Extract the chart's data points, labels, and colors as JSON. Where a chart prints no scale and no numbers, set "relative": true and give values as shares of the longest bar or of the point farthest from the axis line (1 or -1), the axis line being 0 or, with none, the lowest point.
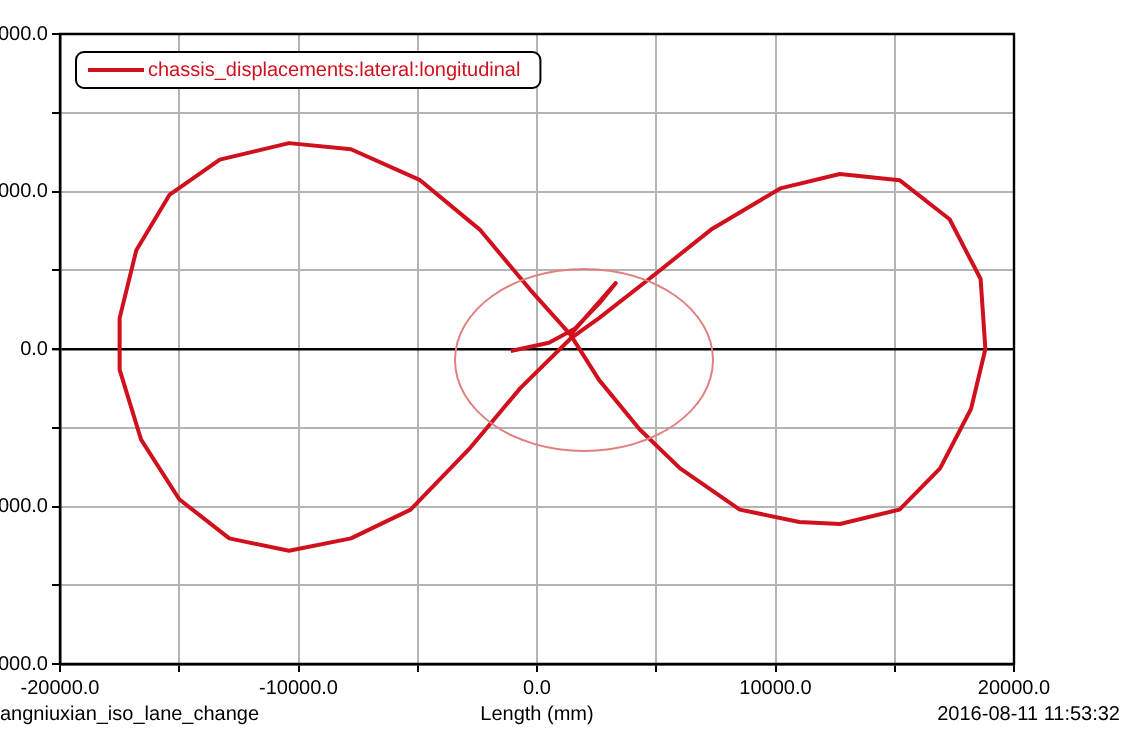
{
  "chart_data": {
    "type": "line",
    "xlabel": "Length (mm)",
    "annotations": [
      "000.0",
      "000.0",
      "0.0",
      "000.0",
      "000.0",
      "angniuxian_iso_lane_change",
      "2016-08-11 11:53:32"
    ],
    "xlim": [
      -20000,
      20000
    ],
    "xticks": [
      {
        "value": -20000,
        "label": "-20000.0"
      },
      {
        "value": -15000,
        "label": null
      },
      {
        "value": -10000,
        "label": "-10000.0"
      },
      {
        "value": -5000,
        "label": null
      },
      {
        "value": 0,
        "label": "0.0"
      },
      {
        "value": 5000,
        "label": null
      },
      {
        "value": 10000,
        "label": "10000.0"
      },
      {
        "value": 15000,
        "label": null
      },
      {
        "value": 20000,
        "label": "20000.0"
      }
    ],
    "relative": true,
    "grid": true,
    "legend": "top left",
    "marker": "none",
    "line_style": "solid",
    "series": [
      {
        "name": "chassis_displacements:lateral:longitudinal",
        "color": "#d0101c",
        "x": [
          -1100,
          500,
          1600,
          2600,
          3300,
          1400,
          2600,
          4300,
          6000,
          8500,
          11000,
          12700,
          15200,
          16900,
          18200,
          18800,
          18600,
          17300,
          15200,
          12700,
          10200,
          7300,
          4700,
          2600,
          1400,
          -700,
          -2800,
          -5300,
          -7800,
          -10400,
          -12900,
          -15000,
          -16600,
          -17500,
          -17500,
          -16800,
          -15400,
          -13300,
          -10400,
          -7800,
          -4900,
          -2400,
          -300,
          1400
        ],
        "values": [
          -0.01,
          0.03,
          0.1,
          0.22,
          0.32,
          0.07,
          -0.15,
          -0.39,
          -0.58,
          -0.78,
          -0.84,
          -0.85,
          -0.78,
          -0.58,
          -0.29,
          0,
          0.34,
          0.63,
          0.82,
          0.85,
          0.78,
          0.58,
          0.34,
          0.15,
          0.05,
          -0.19,
          -0.48,
          -0.78,
          -0.92,
          -0.98,
          -0.92,
          -0.73,
          -0.44,
          -0.1,
          0.15,
          0.48,
          0.75,
          0.92,
          1,
          0.97,
          0.82,
          0.58,
          0.29,
          0.07
        ]
      }
    ]
  }
}
